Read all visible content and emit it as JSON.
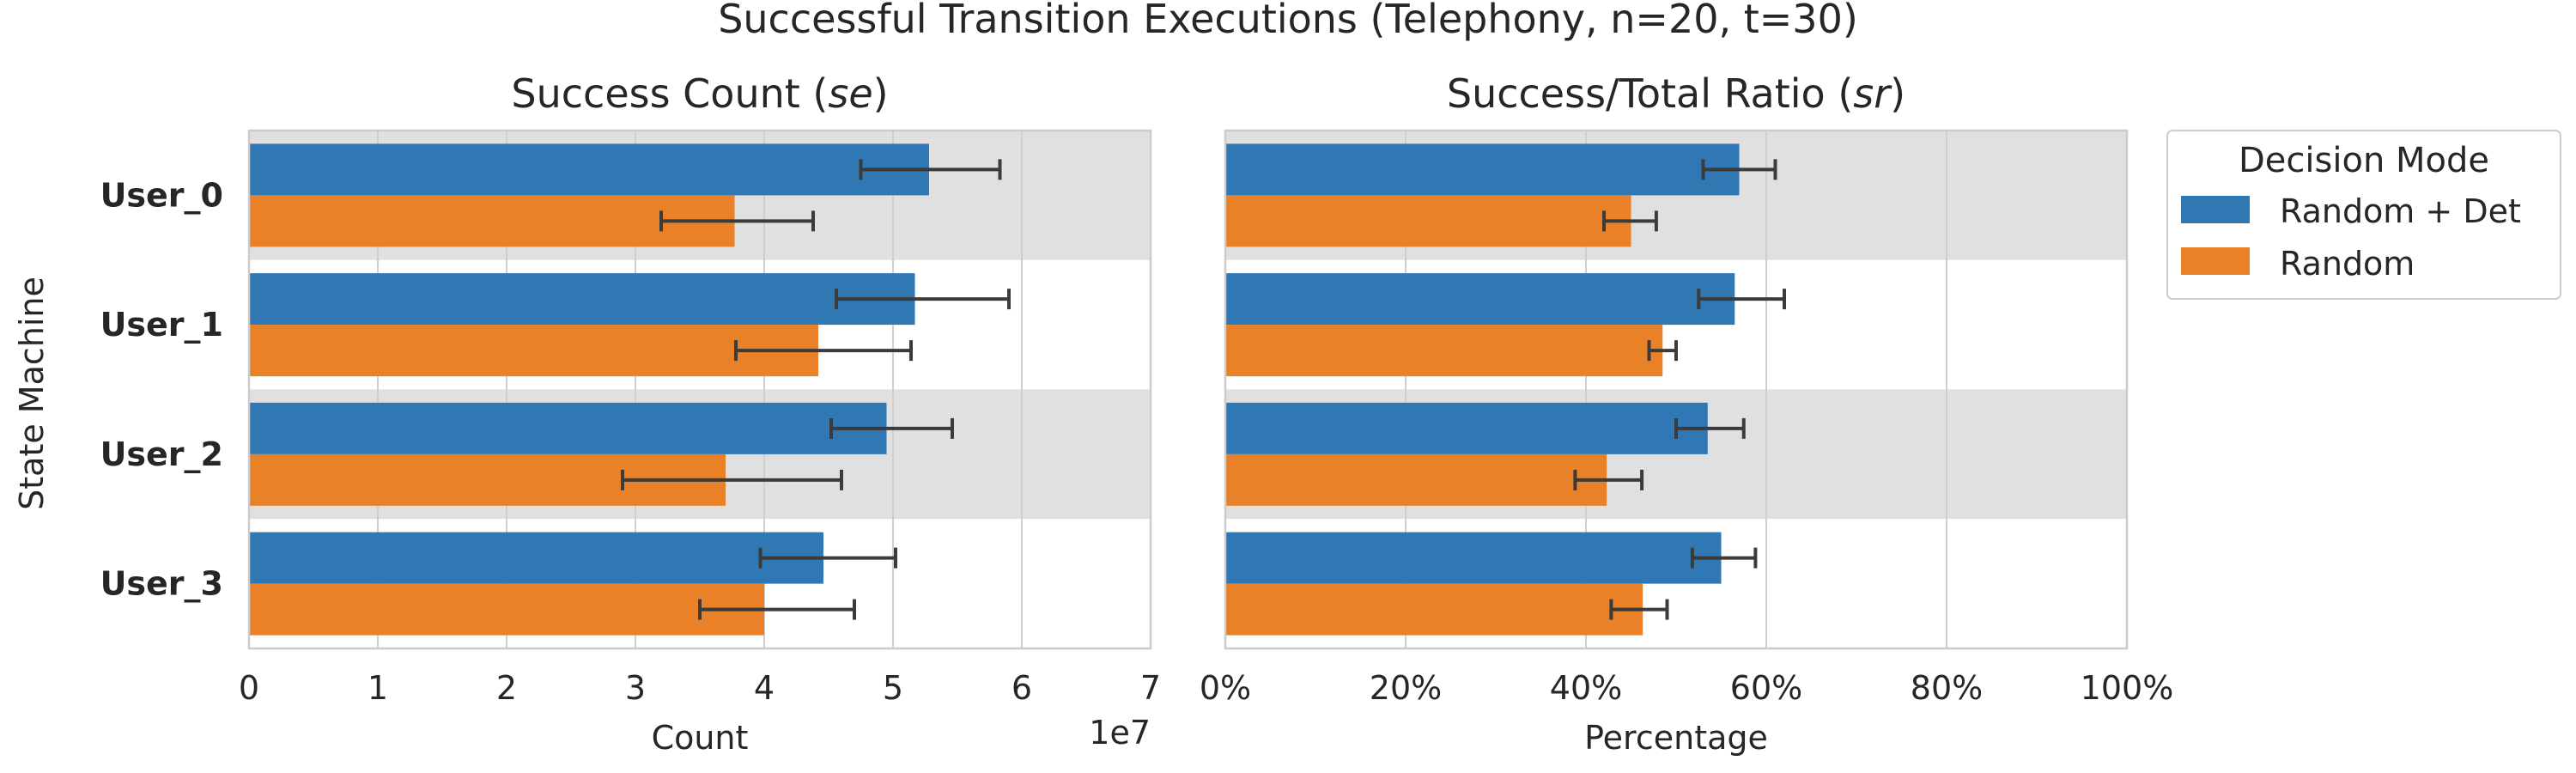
{
  "figure": {
    "title": "Successful Transition Executions (Telephony, n=20, t=30)"
  },
  "legend": {
    "title": "Decision Mode",
    "placement": "right",
    "entries": [
      {
        "label": "Random + Det",
        "color": "#2f78b3"
      },
      {
        "label": "Random",
        "color": "#e88128"
      }
    ]
  },
  "colors": {
    "band": "#e0e0e0",
    "grid": "#cfcfcf",
    "frame": "#cccccc",
    "errorbar": "#3b3b3b"
  },
  "chart_data": [
    {
      "type": "bar",
      "orientation": "horizontal",
      "title_plain": "Success Count (",
      "title_italic": "se",
      "title_close": ")",
      "xlabel": "Count",
      "ylabel": "State Machine",
      "offset_text": "1e7",
      "xlim": [
        0,
        7
      ],
      "xticks": [
        "0",
        "1",
        "2",
        "3",
        "4",
        "5",
        "6",
        "7"
      ],
      "categories": [
        "User_0",
        "User_1",
        "User_2",
        "User_3"
      ],
      "series": [
        {
          "name": "Random + Det",
          "values": [
            5.28,
            5.17,
            4.95,
            4.46
          ],
          "err_low": [
            4.75,
            4.56,
            4.52,
            3.97
          ],
          "err_high": [
            5.83,
            5.9,
            5.46,
            5.02
          ]
        },
        {
          "name": "Random",
          "values": [
            3.77,
            4.42,
            3.7,
            4.0
          ],
          "err_low": [
            3.2,
            3.78,
            2.9,
            3.5
          ],
          "err_high": [
            4.38,
            5.14,
            4.6,
            4.7
          ]
        }
      ],
      "grid": true
    },
    {
      "type": "bar",
      "orientation": "horizontal",
      "title_plain": "Success/Total Ratio (",
      "title_italic": "sr",
      "title_close": ")",
      "xlabel": "Percentage",
      "xlim": [
        0,
        100
      ],
      "xticks": [
        "0%",
        "20%",
        "40%",
        "60%",
        "80%",
        "100%"
      ],
      "categories": [
        "User_0",
        "User_1",
        "User_2",
        "User_3"
      ],
      "series": [
        {
          "name": "Random + Det",
          "values": [
            57,
            56.5,
            53.5,
            55
          ],
          "err_low": [
            53,
            52.5,
            50,
            51.8
          ],
          "err_high": [
            61,
            62,
            57.5,
            58.8
          ]
        },
        {
          "name": "Random",
          "values": [
            45,
            48.5,
            42.3,
            46.3
          ],
          "err_low": [
            42,
            47,
            38.8,
            42.8
          ],
          "err_high": [
            47.8,
            50,
            46.2,
            49
          ]
        }
      ],
      "grid": true
    }
  ]
}
